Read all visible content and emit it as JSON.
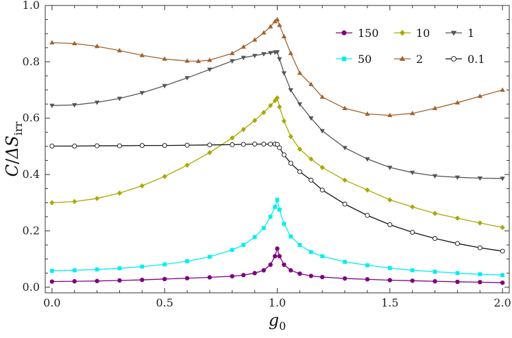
{
  "chart_data": {
    "type": "line",
    "title": "",
    "xlabel": "g0",
    "xlabel_main": "g",
    "xlabel_sub": "0",
    "ylabel": "C/ΔS_irr",
    "ylabel_num": "C",
    "ylabel_slash": "/",
    "ylabel_delta": "ΔS",
    "ylabel_sub": "irr",
    "xlim": [
      -0.03,
      2.03
    ],
    "ylim": [
      -0.02,
      1.0
    ],
    "xticks": [
      0.0,
      0.5,
      1.0,
      1.5,
      2.0
    ],
    "xtick_labels": [
      "0.0",
      "0.5",
      "1.0",
      "1.5",
      "2.0"
    ],
    "yticks": [
      0.0,
      0.2,
      0.4,
      0.6,
      0.8,
      1.0
    ],
    "ytick_labels": [
      "0.0",
      "0.2",
      "0.4",
      "0.6",
      "0.8",
      "1.0"
    ],
    "grid": false,
    "legend_position": "top-right",
    "series": [
      {
        "name": "150",
        "color": "#7f007f",
        "marker": "circle",
        "points": [
          [
            0.0,
            0.02
          ],
          [
            0.1,
            0.021
          ],
          [
            0.2,
            0.022
          ],
          [
            0.3,
            0.024
          ],
          [
            0.4,
            0.026
          ],
          [
            0.5,
            0.029
          ],
          [
            0.6,
            0.032
          ],
          [
            0.7,
            0.035
          ],
          [
            0.8,
            0.039
          ],
          [
            0.85,
            0.043
          ],
          [
            0.9,
            0.05
          ],
          [
            0.94,
            0.06
          ],
          [
            0.97,
            0.08
          ],
          [
            0.99,
            0.11
          ],
          [
            1.0,
            0.137
          ],
          [
            1.01,
            0.11
          ],
          [
            1.03,
            0.08
          ],
          [
            1.06,
            0.06
          ],
          [
            1.1,
            0.048
          ],
          [
            1.15,
            0.04
          ],
          [
            1.2,
            0.036
          ],
          [
            1.3,
            0.031
          ],
          [
            1.4,
            0.028
          ],
          [
            1.5,
            0.025
          ],
          [
            1.6,
            0.023
          ],
          [
            1.7,
            0.021
          ],
          [
            1.8,
            0.019
          ],
          [
            1.9,
            0.018
          ],
          [
            2.0,
            0.016
          ]
        ]
      },
      {
        "name": "50",
        "color": "#00eeee",
        "marker": "square",
        "points": [
          [
            0.0,
            0.058
          ],
          [
            0.1,
            0.06
          ],
          [
            0.2,
            0.063
          ],
          [
            0.3,
            0.067
          ],
          [
            0.4,
            0.073
          ],
          [
            0.5,
            0.081
          ],
          [
            0.6,
            0.092
          ],
          [
            0.7,
            0.108
          ],
          [
            0.8,
            0.132
          ],
          [
            0.85,
            0.15
          ],
          [
            0.9,
            0.178
          ],
          [
            0.94,
            0.21
          ],
          [
            0.97,
            0.25
          ],
          [
            0.99,
            0.285
          ],
          [
            1.0,
            0.31
          ],
          [
            1.01,
            0.275
          ],
          [
            1.03,
            0.225
          ],
          [
            1.06,
            0.18
          ],
          [
            1.1,
            0.15
          ],
          [
            1.15,
            0.125
          ],
          [
            1.2,
            0.11
          ],
          [
            1.3,
            0.09
          ],
          [
            1.4,
            0.078
          ],
          [
            1.5,
            0.068
          ],
          [
            1.6,
            0.06
          ],
          [
            1.7,
            0.055
          ],
          [
            1.8,
            0.05
          ],
          [
            1.9,
            0.046
          ],
          [
            2.0,
            0.043
          ]
        ]
      },
      {
        "name": "10",
        "color": "#a8a800",
        "marker": "diamond",
        "points": [
          [
            0.0,
            0.3
          ],
          [
            0.1,
            0.304
          ],
          [
            0.2,
            0.315
          ],
          [
            0.3,
            0.334
          ],
          [
            0.4,
            0.36
          ],
          [
            0.5,
            0.393
          ],
          [
            0.6,
            0.433
          ],
          [
            0.7,
            0.478
          ],
          [
            0.8,
            0.53
          ],
          [
            0.85,
            0.56
          ],
          [
            0.9,
            0.592
          ],
          [
            0.94,
            0.62
          ],
          [
            0.97,
            0.645
          ],
          [
            0.99,
            0.662
          ],
          [
            1.0,
            0.672
          ],
          [
            1.01,
            0.64
          ],
          [
            1.03,
            0.59
          ],
          [
            1.06,
            0.535
          ],
          [
            1.1,
            0.49
          ],
          [
            1.15,
            0.455
          ],
          [
            1.2,
            0.425
          ],
          [
            1.3,
            0.38
          ],
          [
            1.4,
            0.345
          ],
          [
            1.5,
            0.31
          ],
          [
            1.6,
            0.285
          ],
          [
            1.7,
            0.262
          ],
          [
            1.8,
            0.245
          ],
          [
            1.9,
            0.228
          ],
          [
            2.0,
            0.212
          ]
        ]
      },
      {
        "name": "2",
        "color": "#a0622d",
        "marker": "triangle-up",
        "points": [
          [
            0.0,
            0.868
          ],
          [
            0.1,
            0.865
          ],
          [
            0.2,
            0.855
          ],
          [
            0.3,
            0.84
          ],
          [
            0.4,
            0.823
          ],
          [
            0.5,
            0.81
          ],
          [
            0.6,
            0.803
          ],
          [
            0.65,
            0.802
          ],
          [
            0.7,
            0.806
          ],
          [
            0.8,
            0.83
          ],
          [
            0.85,
            0.853
          ],
          [
            0.9,
            0.878
          ],
          [
            0.94,
            0.903
          ],
          [
            0.97,
            0.925
          ],
          [
            0.99,
            0.943
          ],
          [
            1.0,
            0.95
          ],
          [
            1.01,
            0.93
          ],
          [
            1.03,
            0.89
          ],
          [
            1.06,
            0.83
          ],
          [
            1.1,
            0.76
          ],
          [
            1.15,
            0.72
          ],
          [
            1.2,
            0.675
          ],
          [
            1.3,
            0.635
          ],
          [
            1.4,
            0.615
          ],
          [
            1.5,
            0.61
          ],
          [
            1.6,
            0.617
          ],
          [
            1.7,
            0.635
          ],
          [
            1.8,
            0.655
          ],
          [
            1.9,
            0.678
          ],
          [
            2.0,
            0.7
          ]
        ]
      },
      {
        "name": "1",
        "color": "#555555",
        "marker": "triangle-down",
        "points": [
          [
            0.0,
            0.645
          ],
          [
            0.1,
            0.647
          ],
          [
            0.2,
            0.656
          ],
          [
            0.3,
            0.67
          ],
          [
            0.4,
            0.69
          ],
          [
            0.5,
            0.715
          ],
          [
            0.6,
            0.743
          ],
          [
            0.7,
            0.773
          ],
          [
            0.8,
            0.803
          ],
          [
            0.85,
            0.815
          ],
          [
            0.9,
            0.822
          ],
          [
            0.94,
            0.828
          ],
          [
            0.97,
            0.832
          ],
          [
            0.99,
            0.834
          ],
          [
            1.0,
            0.835
          ],
          [
            1.01,
            0.81
          ],
          [
            1.03,
            0.76
          ],
          [
            1.06,
            0.7
          ],
          [
            1.1,
            0.65
          ],
          [
            1.15,
            0.6
          ],
          [
            1.2,
            0.555
          ],
          [
            1.3,
            0.495
          ],
          [
            1.4,
            0.455
          ],
          [
            1.5,
            0.425
          ],
          [
            1.6,
            0.407
          ],
          [
            1.7,
            0.395
          ],
          [
            1.8,
            0.39
          ],
          [
            1.9,
            0.387
          ],
          [
            2.0,
            0.386
          ]
        ]
      },
      {
        "name": "0.1",
        "color": "#111111",
        "marker": "open-circle",
        "points": [
          [
            0.0,
            0.501
          ],
          [
            0.1,
            0.501
          ],
          [
            0.2,
            0.502
          ],
          [
            0.3,
            0.502
          ],
          [
            0.4,
            0.503
          ],
          [
            0.5,
            0.503
          ],
          [
            0.6,
            0.504
          ],
          [
            0.7,
            0.505
          ],
          [
            0.8,
            0.506
          ],
          [
            0.85,
            0.507
          ],
          [
            0.9,
            0.508
          ],
          [
            0.94,
            0.508
          ],
          [
            0.97,
            0.508
          ],
          [
            0.99,
            0.508
          ],
          [
            1.0,
            0.507
          ],
          [
            1.01,
            0.495
          ],
          [
            1.03,
            0.47
          ],
          [
            1.06,
            0.44
          ],
          [
            1.1,
            0.41
          ],
          [
            1.15,
            0.38
          ],
          [
            1.2,
            0.345
          ],
          [
            1.3,
            0.295
          ],
          [
            1.4,
            0.255
          ],
          [
            1.5,
            0.222
          ],
          [
            1.6,
            0.195
          ],
          [
            1.7,
            0.173
          ],
          [
            1.8,
            0.155
          ],
          [
            1.9,
            0.14
          ],
          [
            2.0,
            0.128
          ]
        ]
      }
    ]
  }
}
